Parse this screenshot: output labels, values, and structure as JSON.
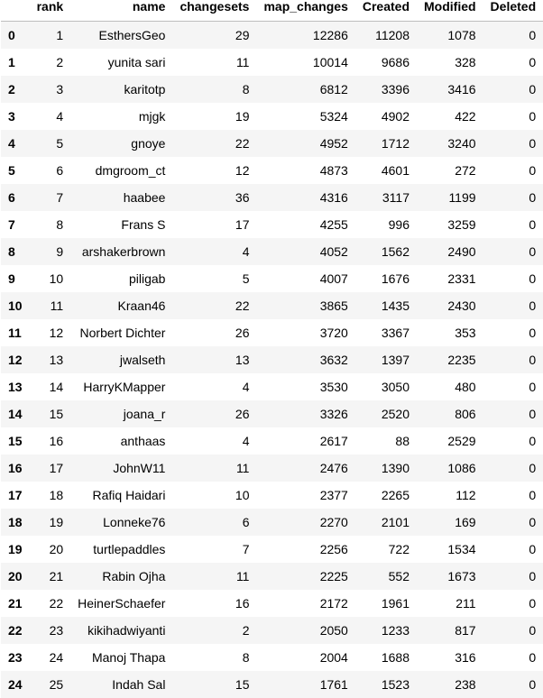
{
  "table": {
    "columns": [
      "",
      "rank",
      "name",
      "changesets",
      "map_changes",
      "Created",
      "Modified",
      "Deleted"
    ],
    "rows": [
      [
        "0",
        "1",
        "EsthersGeo",
        "29",
        "12286",
        "11208",
        "1078",
        "0"
      ],
      [
        "1",
        "2",
        "yunita sari",
        "11",
        "10014",
        "9686",
        "328",
        "0"
      ],
      [
        "2",
        "3",
        "karitotp",
        "8",
        "6812",
        "3396",
        "3416",
        "0"
      ],
      [
        "3",
        "4",
        "mjgk",
        "19",
        "5324",
        "4902",
        "422",
        "0"
      ],
      [
        "4",
        "5",
        "gnoye",
        "22",
        "4952",
        "1712",
        "3240",
        "0"
      ],
      [
        "5",
        "6",
        "dmgroom_ct",
        "12",
        "4873",
        "4601",
        "272",
        "0"
      ],
      [
        "6",
        "7",
        "haabee",
        "36",
        "4316",
        "3117",
        "1199",
        "0"
      ],
      [
        "7",
        "8",
        "Frans S",
        "17",
        "4255",
        "996",
        "3259",
        "0"
      ],
      [
        "8",
        "9",
        "arshakerbrown",
        "4",
        "4052",
        "1562",
        "2490",
        "0"
      ],
      [
        "9",
        "10",
        "piligab",
        "5",
        "4007",
        "1676",
        "2331",
        "0"
      ],
      [
        "10",
        "11",
        "Kraan46",
        "22",
        "3865",
        "1435",
        "2430",
        "0"
      ],
      [
        "11",
        "12",
        "Norbert Dichter",
        "26",
        "3720",
        "3367",
        "353",
        "0"
      ],
      [
        "12",
        "13",
        "jwalseth",
        "13",
        "3632",
        "1397",
        "2235",
        "0"
      ],
      [
        "13",
        "14",
        "HarryKMapper",
        "4",
        "3530",
        "3050",
        "480",
        "0"
      ],
      [
        "14",
        "15",
        "joana_r",
        "26",
        "3326",
        "2520",
        "806",
        "0"
      ],
      [
        "15",
        "16",
        "anthaas",
        "4",
        "2617",
        "88",
        "2529",
        "0"
      ],
      [
        "16",
        "17",
        "JohnW11",
        "11",
        "2476",
        "1390",
        "1086",
        "0"
      ],
      [
        "17",
        "18",
        "Rafiq Haidari",
        "10",
        "2377",
        "2265",
        "112",
        "0"
      ],
      [
        "18",
        "19",
        "Lonneke76",
        "6",
        "2270",
        "2101",
        "169",
        "0"
      ],
      [
        "19",
        "20",
        "turtlepaddles",
        "7",
        "2256",
        "722",
        "1534",
        "0"
      ],
      [
        "20",
        "21",
        "Rabin Ojha",
        "11",
        "2225",
        "552",
        "1673",
        "0"
      ],
      [
        "21",
        "22",
        "HeinerSchaefer",
        "16",
        "2172",
        "1961",
        "211",
        "0"
      ],
      [
        "22",
        "23",
        "kikihadwiyanti",
        "2",
        "2050",
        "1233",
        "817",
        "0"
      ],
      [
        "23",
        "24",
        "Manoj Thapa",
        "8",
        "2004",
        "1688",
        "316",
        "0"
      ],
      [
        "24",
        "25",
        "Indah Sal",
        "15",
        "1761",
        "1523",
        "238",
        "0"
      ]
    ]
  }
}
